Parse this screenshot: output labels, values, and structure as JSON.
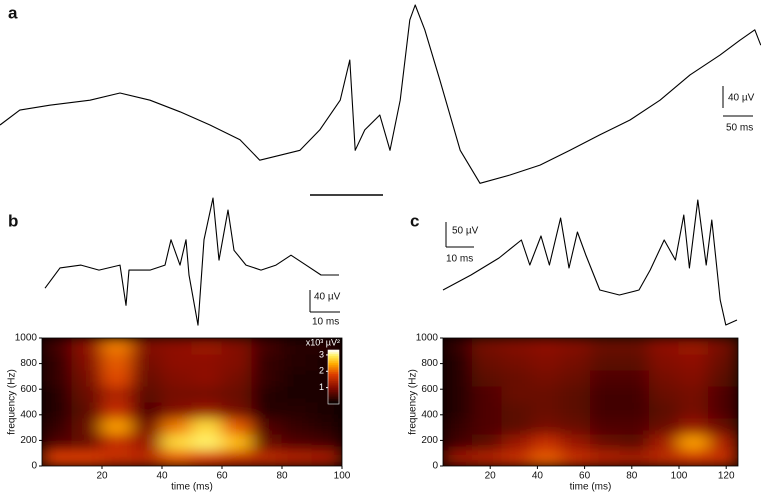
{
  "chart_data": [
    {
      "type": "line",
      "title": "a",
      "x": [
        0,
        33,
        83,
        150,
        200,
        250,
        300,
        350,
        400,
        433,
        467,
        500,
        533,
        567,
        583,
        592,
        608,
        633,
        650,
        667,
        683,
        692,
        708,
        733,
        767,
        800,
        850,
        900,
        950,
        1000,
        1050,
        1100,
        1150,
        1200,
        1233,
        1258,
        1268
      ],
      "values": [
        -9,
        18,
        27,
        36,
        49,
        36,
        15,
        -9,
        -36,
        -73,
        -64,
        -55,
        -18,
        36,
        109,
        -55,
        -18,
        9,
        -55,
        36,
        182,
        209,
        164,
        73,
        -55,
        -115,
        -100,
        -82,
        -55,
        -27,
        0,
        36,
        82,
        118,
        145,
        164,
        136
      ],
      "scalebars": [
        {
          "value": 40,
          "label": "40 µV"
        },
        {
          "value": 50,
          "label": "50 ms"
        }
      ]
    },
    {
      "type": "line",
      "title": "b",
      "x": [
        0,
        5,
        12,
        18,
        25,
        27,
        28,
        35,
        40,
        42,
        45,
        47,
        48,
        51,
        53,
        56,
        58,
        61,
        63,
        67,
        72,
        77,
        82,
        87,
        92,
        98
      ],
      "values": [
        -24,
        13,
        18,
        9,
        18,
        -55,
        9,
        9,
        18,
        64,
        18,
        64,
        0,
        -91,
        64,
        140,
        27,
        118,
        45,
        18,
        9,
        18,
        36,
        18,
        0,
        0
      ],
      "scalebars": [
        {
          "value": 40,
          "label": "40 µV"
        },
        {
          "value": 10,
          "label": "10 ms"
        }
      ]
    },
    {
      "type": "line",
      "title": "c",
      "x": [
        0,
        10,
        20,
        28,
        31,
        35,
        38,
        42,
        45,
        48,
        51,
        56,
        63,
        70,
        74,
        79,
        83,
        86,
        88,
        91,
        94,
        96,
        99,
        101,
        105
      ],
      "values": [
        -50,
        -20,
        14,
        50,
        0,
        58,
        0,
        94,
        -6,
        66,
        20,
        -50,
        -60,
        -50,
        -10,
        50,
        10,
        100,
        -6,
        130,
        0,
        90,
        -70,
        -120,
        -110
      ],
      "scalebars": [
        {
          "value": 50,
          "label": "50 µV"
        },
        {
          "value": 10,
          "label": "10 ms"
        }
      ]
    },
    {
      "type": "heatmap",
      "xlabel": "time (ms)",
      "ylabel": "frequency (Hz)",
      "xlim": [
        0,
        100
      ],
      "xticks": [
        20,
        40,
        60,
        80,
        100
      ],
      "ylim": [
        0,
        1000
      ],
      "yticks": [
        0,
        200,
        400,
        600,
        800,
        1000
      ],
      "x": [
        5,
        15,
        25,
        35,
        45,
        55,
        65,
        75,
        85,
        95
      ],
      "y": [
        62.5,
        187.5,
        312.5,
        437.5,
        562.5,
        687.5,
        812.5,
        937.5
      ],
      "z": [
        [
          1.8,
          1.8,
          1.6,
          1.5,
          2.0,
          1.8,
          1.6,
          1.5,
          1.4,
          1.3
        ],
        [
          0.6,
          0.8,
          1.6,
          1.2,
          2.8,
          3.0,
          2.6,
          0.8,
          0.6,
          0.5
        ],
        [
          0.4,
          0.8,
          2.4,
          0.9,
          2.2,
          2.8,
          2.0,
          0.6,
          0.4,
          0.3
        ],
        [
          0.3,
          0.7,
          1.6,
          0.6,
          1.0,
          1.2,
          0.9,
          0.3,
          0.3,
          0.2
        ],
        [
          0.3,
          0.8,
          1.4,
          0.7,
          0.9,
          0.9,
          0.8,
          0.3,
          0.2,
          0.2
        ],
        [
          0.4,
          0.9,
          1.9,
          0.8,
          1.0,
          1.1,
          0.9,
          0.4,
          0.2,
          0.2
        ],
        [
          0.4,
          1.0,
          2.0,
          0.9,
          1.1,
          1.1,
          1.0,
          0.4,
          0.3,
          0.2
        ],
        [
          0.5,
          1.1,
          2.2,
          1.0,
          1.1,
          1.2,
          1.0,
          0.5,
          0.3,
          0.3
        ]
      ],
      "clim": [
        0,
        3.3
      ],
      "colorbar_label": "x10³ µV²",
      "colorbar_ticks": [
        1,
        2,
        3
      ]
    },
    {
      "type": "heatmap",
      "xlabel": "time (ms)",
      "ylabel": "frequency (Hz)",
      "xlim": [
        0,
        125
      ],
      "xticks": [
        20,
        40,
        60,
        80,
        100,
        120
      ],
      "ylim": [
        0,
        1000
      ],
      "yticks": [
        0,
        200,
        400,
        600,
        800,
        1000
      ],
      "x": [
        6.25,
        18.75,
        31.25,
        43.75,
        56.25,
        68.75,
        81.25,
        93.75,
        106.25,
        118.75
      ],
      "y": [
        62.5,
        187.5,
        312.5,
        437.5,
        562.5,
        687.5,
        812.5,
        937.5
      ],
      "z": [
        [
          1.2,
          1.4,
          1.6,
          2.0,
          1.6,
          1.4,
          1.3,
          1.5,
          1.7,
          1.6
        ],
        [
          0.5,
          0.7,
          1.2,
          1.6,
          1.2,
          0.8,
          0.7,
          1.3,
          2.4,
          1.4
        ],
        [
          0.4,
          0.6,
          0.7,
          0.9,
          0.8,
          0.6,
          0.6,
          0.8,
          1.2,
          0.8
        ],
        [
          0.3,
          0.6,
          0.7,
          0.8,
          0.7,
          0.5,
          0.5,
          0.7,
          0.9,
          0.6
        ],
        [
          0.3,
          0.6,
          0.8,
          0.8,
          0.7,
          0.5,
          0.5,
          0.8,
          0.9,
          0.6
        ],
        [
          0.3,
          0.7,
          0.8,
          0.9,
          0.8,
          0.6,
          0.6,
          0.9,
          1.0,
          0.7
        ],
        [
          0.3,
          0.8,
          0.9,
          1.0,
          0.9,
          0.7,
          0.7,
          1.0,
          1.1,
          0.8
        ],
        [
          0.4,
          0.9,
          1.0,
          1.1,
          1.0,
          0.8,
          0.8,
          1.1,
          1.2,
          0.9
        ]
      ],
      "clim": [
        0,
        3.3
      ]
    }
  ]
}
